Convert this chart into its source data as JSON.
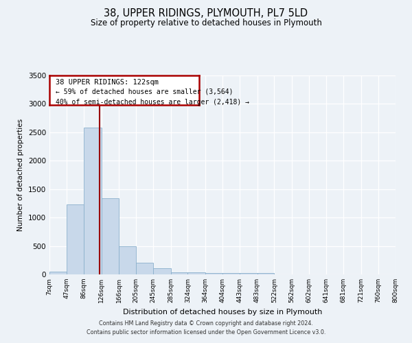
{
  "title": "38, UPPER RIDINGS, PLYMOUTH, PL7 5LD",
  "subtitle": "Size of property relative to detached houses in Plymouth",
  "xlabel": "Distribution of detached houses by size in Plymouth",
  "ylabel": "Number of detached properties",
  "bar_color": "#c8d8ea",
  "bar_edge_color": "#8ab0cc",
  "background_color": "#edf2f7",
  "vline_x": 122,
  "vline_color": "#990000",
  "annotation_line1": "38 UPPER RIDINGS: 122sqm",
  "annotation_line2": "← 59% of detached houses are smaller (3,564)",
  "annotation_line3": "40% of semi-detached houses are larger (2,418) →",
  "annotation_box_edgecolor": "#aa0000",
  "footer_line1": "Contains HM Land Registry data © Crown copyright and database right 2024.",
  "footer_line2": "Contains public sector information licensed under the Open Government Licence v3.0.",
  "bin_edges": [
    7,
    47,
    86,
    126,
    166,
    205,
    245,
    285,
    324,
    364,
    404,
    443,
    483,
    522,
    562,
    602,
    641,
    681,
    721,
    760,
    800
  ],
  "bin_labels": [
    "7sqm",
    "47sqm",
    "86sqm",
    "126sqm",
    "166sqm",
    "205sqm",
    "245sqm",
    "285sqm",
    "324sqm",
    "364sqm",
    "404sqm",
    "443sqm",
    "483sqm",
    "522sqm",
    "562sqm",
    "602sqm",
    "641sqm",
    "681sqm",
    "721sqm",
    "760sqm",
    "800sqm"
  ],
  "counts": [
    50,
    1230,
    2580,
    1340,
    490,
    200,
    110,
    40,
    40,
    20,
    20,
    20,
    20,
    0,
    0,
    0,
    0,
    0,
    0,
    0
  ],
  "ylim": [
    0,
    3500
  ],
  "yticks": [
    0,
    500,
    1000,
    1500,
    2000,
    2500,
    3000,
    3500
  ]
}
